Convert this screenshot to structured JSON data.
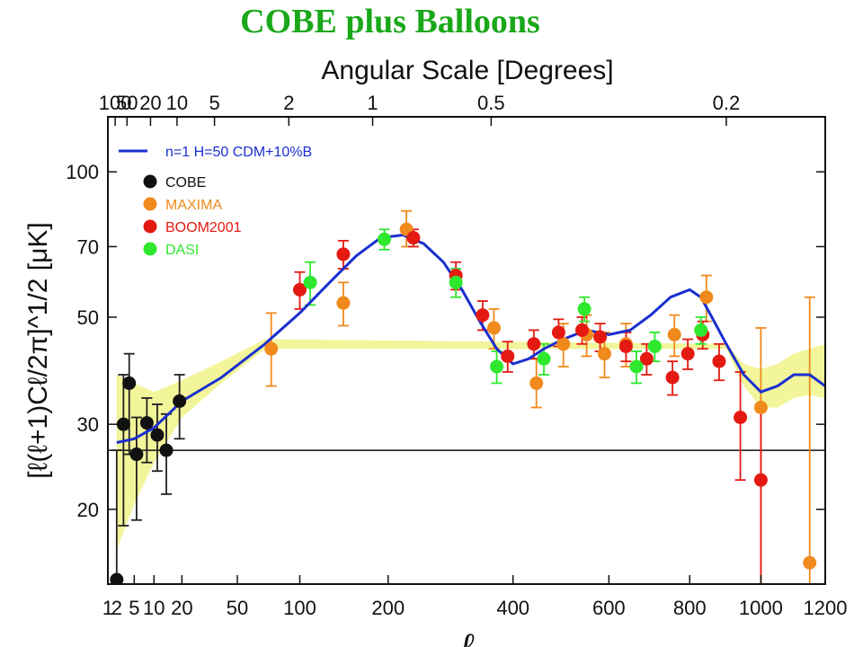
{
  "slide_title": "COBE plus Balloons",
  "colors": {
    "title": "#1aa81a",
    "model": "#1a2fd0",
    "band": "#f2f59a",
    "cobe": "#111111",
    "maxima": "#f08a1c",
    "boom": "#e41a12",
    "dasi": "#2ee82e"
  },
  "chart_data": {
    "type": "scatter",
    "title": "COBE plus Balloons",
    "x_axis": {
      "label": "ℓ",
      "scale": "sqrt",
      "range": [
        1,
        1200
      ],
      "ticks": [
        1,
        2,
        5,
        10,
        20,
        50,
        100,
        200,
        400,
        600,
        800,
        1000,
        1200
      ]
    },
    "top_axis": {
      "label": "Angular Scale [Degrees]",
      "ticks": [
        {
          "label": "100",
          "ell": 1.8
        },
        {
          "label": "50",
          "ell": 3.6
        },
        {
          "label": "20",
          "ell": 9
        },
        {
          "label": "10",
          "ell": 18
        },
        {
          "label": "5",
          "ell": 36
        },
        {
          "label": "2",
          "ell": 90
        },
        {
          "label": "1",
          "ell": 180
        },
        {
          "label": "0.5",
          "ell": 360
        },
        {
          "label": "0.2",
          "ell": 900
        }
      ]
    },
    "y_axis": {
      "label": "[ℓ(ℓ+1)Cℓ/2π]^1/2 [μK]",
      "scale": "log",
      "range": [
        14,
        130
      ],
      "ticks": [
        20,
        30,
        50,
        70,
        100
      ]
    },
    "reference_line": 26.5,
    "legend_position": "top-left",
    "model": {
      "name": "n=1 H=50 CDM+10%B",
      "x": [
        2,
        5,
        10,
        20,
        40,
        70,
        100,
        130,
        160,
        190,
        220,
        250,
        280,
        310,
        340,
        370,
        400,
        430,
        460,
        500,
        550,
        600,
        650,
        700,
        750,
        800,
        830,
        860,
        900,
        950,
        1000,
        1050,
        1100,
        1150,
        1200
      ],
      "y": [
        27.5,
        28.0,
        29.5,
        33.5,
        37.5,
        44,
        51,
        59,
        67,
        73,
        74,
        71,
        65,
        57,
        49,
        43,
        40,
        41,
        43,
        45,
        47,
        46,
        47,
        50.5,
        55,
        57,
        55,
        50,
        44,
        38,
        35,
        36,
        38,
        38,
        36
      ]
    },
    "band": {
      "x": [
        2,
        5,
        10,
        20,
        40,
        70,
        900,
        950,
        1000,
        1050,
        1100,
        1150,
        1200
      ],
      "upper": [
        38,
        36.5,
        35,
        37,
        40.5,
        45,
        44,
        40,
        39,
        40,
        42,
        43,
        44
      ],
      "lower": [
        16.5,
        20.5,
        25,
        31,
        36.5,
        43,
        43,
        36,
        32.5,
        32.5,
        34,
        34.5,
        34
      ]
    },
    "series": [
      {
        "name": "COBE",
        "points": [
          [
            2,
            14.3,
            14.3,
            26.5
          ],
          [
            3,
            30,
            18.5,
            38
          ],
          [
            4,
            36.5,
            26,
            42
          ],
          [
            5.5,
            26,
            19,
            31
          ],
          [
            8,
            30.2,
            25,
            34
          ],
          [
            11,
            28.5,
            24,
            33
          ],
          [
            14,
            26.5,
            21.5,
            31.5
          ],
          [
            19,
            33.5,
            28,
            38
          ]
        ]
      },
      {
        "name": "MAXIMA",
        "points": [
          [
            75,
            43,
            36,
            51
          ],
          [
            145,
            53.5,
            48,
            59
          ],
          [
            225,
            76,
            70,
            83
          ],
          [
            365,
            47.5,
            43,
            52
          ],
          [
            445,
            36.5,
            32.5,
            41
          ],
          [
            500,
            44,
            39.5,
            48.5
          ],
          [
            550,
            46,
            41.5,
            50.5
          ],
          [
            590,
            42,
            37.5,
            46.5
          ],
          [
            640,
            44,
            39.5,
            48.5
          ],
          [
            760,
            46,
            41.5,
            50.5
          ],
          [
            845,
            55,
            49,
            61
          ],
          [
            1000,
            32.5,
            14,
            47.5
          ],
          [
            1150,
            15.5,
            14,
            55
          ]
        ]
      },
      {
        "name": "BOOM2001",
        "points": [
          [
            100,
            57,
            52,
            62
          ],
          [
            145,
            67.5,
            63,
            72
          ],
          [
            235,
            73,
            70,
            76
          ],
          [
            300,
            61,
            57,
            65
          ],
          [
            345,
            50.5,
            47,
            54
          ],
          [
            390,
            41.5,
            38.5,
            44.5
          ],
          [
            440,
            44,
            41,
            47
          ],
          [
            490,
            46.5,
            43.5,
            49.5
          ],
          [
            540,
            47,
            44,
            50
          ],
          [
            580,
            45.5,
            42.5,
            48.5
          ],
          [
            640,
            43.5,
            40.5,
            46.5
          ],
          [
            690,
            41,
            38,
            44
          ],
          [
            755,
            37.5,
            34.5,
            40.5
          ],
          [
            795,
            42,
            39,
            45
          ],
          [
            835,
            46,
            43,
            49
          ],
          [
            880,
            40.5,
            37,
            44
          ],
          [
            940,
            31,
            23,
            38.5
          ],
          [
            1000,
            23,
            14,
            32.5
          ]
        ]
      },
      {
        "name": "DASI",
        "points": [
          [
            110,
            59,
            53,
            65
          ],
          [
            195,
            72.5,
            69,
            76
          ],
          [
            300,
            59,
            55,
            63
          ],
          [
            370,
            39.5,
            36.5,
            42.5
          ],
          [
            460,
            41,
            38,
            44
          ],
          [
            545,
            52,
            49,
            55
          ],
          [
            665,
            39.5,
            36.5,
            42.5
          ],
          [
            710,
            43.5,
            40.5,
            46.5
          ],
          [
            830,
            47,
            44,
            50
          ]
        ]
      }
    ]
  }
}
